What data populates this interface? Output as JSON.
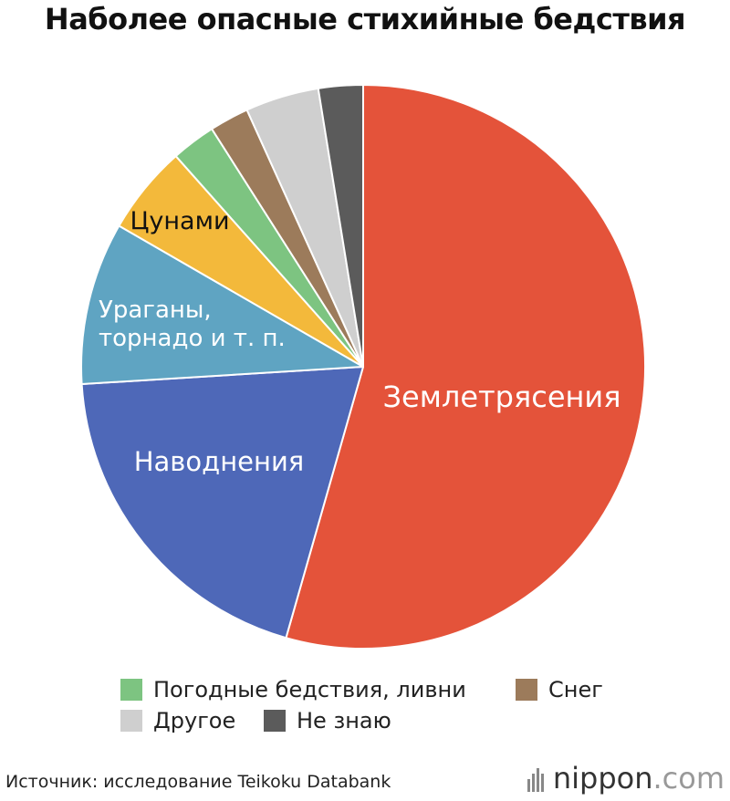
{
  "title": "Наболее опасные стихийные бедствия",
  "chart_data": {
    "type": "pie",
    "slices": [
      {
        "label": "Землетрясения",
        "value": 55.5,
        "color": "#e4533a",
        "label_color": "#ffffff"
      },
      {
        "label": "Наводнения",
        "value": 20.0,
        "color": "#4e68b8",
        "label_color": "#ffffff"
      },
      {
        "label": "Ураганы, торнадо и т. п.",
        "value": 9.5,
        "color": "#5fa4c2",
        "label_color": "#ffffff"
      },
      {
        "label": "Цунами",
        "value": 5.2,
        "color": "#f3b93b",
        "label_color": "#111111"
      },
      {
        "label": "Погодные бедствия, ливни",
        "value": 2.6,
        "color": "#7dc481",
        "label_color": null
      },
      {
        "label": "Снег",
        "value": 2.3,
        "color": "#9c7b5b",
        "label_color": null
      },
      {
        "label": "Другое",
        "value": 4.3,
        "color": "#cfcfcf",
        "label_color": null
      },
      {
        "label": "Не знаю",
        "value": 2.6,
        "color": "#5b5b5b",
        "label_color": null
      }
    ],
    "legend": [
      "Погодные бедствия, ливни",
      "Снег",
      "Другое",
      "Не знаю"
    ]
  },
  "source": "Источник: исследование Teikoku Databank",
  "brand": {
    "name": "nippon",
    "suffix": ".com"
  }
}
